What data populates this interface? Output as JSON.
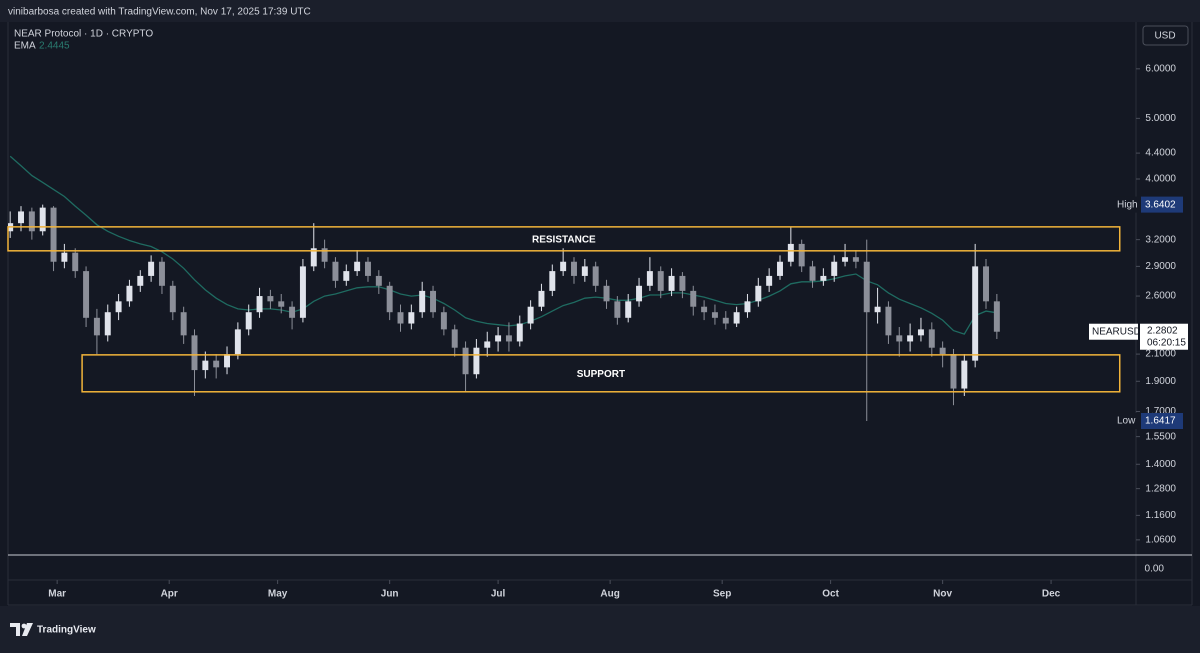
{
  "chart_data": {
    "type": "candlestick",
    "attribution": "vinibarbosa created with TradingView.com, Nov 17, 2025 17:39 UTC",
    "title": "NEAR Protocol · 1D · CRYPTO",
    "currency": "USD",
    "brand": "TradingView",
    "log_scale": true,
    "grid": false,
    "x": [
      -13,
      -10,
      -7,
      -4,
      -1,
      2,
      5,
      8,
      11,
      14,
      17,
      20,
      23,
      26,
      29,
      32,
      35,
      38,
      41,
      44,
      47,
      50,
      53,
      56,
      59,
      62,
      65,
      68,
      71,
      74,
      77,
      80,
      83,
      86,
      89,
      92,
      95,
      98,
      101,
      104,
      107,
      110,
      113,
      116,
      119,
      122,
      125,
      128,
      131,
      134,
      137,
      140,
      143,
      146,
      149,
      152,
      155,
      158,
      161,
      164,
      167,
      170,
      173,
      176,
      179,
      182,
      185,
      188,
      191,
      194,
      197,
      200,
      203,
      206,
      209,
      212,
      215,
      218,
      221,
      224,
      227,
      230,
      233,
      236,
      239,
      242,
      245,
      248,
      251,
      254,
      257,
      260
    ],
    "xlim": [
      -13.6,
      298.5
    ],
    "xticks": [
      {
        "value": 0,
        "label": "Mar"
      },
      {
        "value": 31,
        "label": "Apr"
      },
      {
        "value": 61,
        "label": "May"
      },
      {
        "value": 92,
        "label": "Jun"
      },
      {
        "value": 122,
        "label": "Jul"
      },
      {
        "value": 153,
        "label": "Aug"
      },
      {
        "value": 184,
        "label": "Sep"
      },
      {
        "value": 214,
        "label": "Oct"
      },
      {
        "value": 245,
        "label": "Nov"
      },
      {
        "value": 275,
        "label": "Dec"
      }
    ],
    "ylim": [
      1.01,
      7.05
    ],
    "yticks": [
      {
        "value": 6,
        "label": "6.0000"
      },
      {
        "value": 5,
        "label": "5.0000"
      },
      {
        "value": 4.4,
        "label": "4.4000"
      },
      {
        "value": 4,
        "label": "4.0000"
      },
      {
        "value": 3.2,
        "label": "3.2000"
      },
      {
        "value": 2.9,
        "label": "2.9000"
      },
      {
        "value": 2.6,
        "label": "2.6000"
      },
      {
        "value": 2.1,
        "label": "2.1000"
      },
      {
        "value": 1.9,
        "label": "1.9000"
      },
      {
        "value": 1.7,
        "label": "1.7000"
      },
      {
        "value": 1.55,
        "label": "1.5500"
      },
      {
        "value": 1.4,
        "label": "1.4000"
      },
      {
        "value": 1.28,
        "label": "1.2800"
      },
      {
        "value": 1.16,
        "label": "1.1600"
      },
      {
        "value": 1.06,
        "label": "1.0600"
      }
    ],
    "lower_pane_yticks": [
      {
        "value": 0,
        "label": "0.00"
      }
    ],
    "candles": {
      "name": "NEARUSD",
      "up_color": "#e0e3eb",
      "down_color": "#8c8f99",
      "ohlc": [
        [
          3.3,
          3.55,
          3.22,
          3.4
        ],
        [
          3.4,
          3.62,
          3.3,
          3.55
        ],
        [
          3.55,
          3.6,
          3.2,
          3.3
        ],
        [
          3.3,
          3.6402,
          3.25,
          3.6
        ],
        [
          3.6,
          3.62,
          2.85,
          2.95
        ],
        [
          2.95,
          3.15,
          2.88,
          3.05
        ],
        [
          3.05,
          3.1,
          2.78,
          2.85
        ],
        [
          2.85,
          2.9,
          2.32,
          2.4
        ],
        [
          2.4,
          2.48,
          2.1,
          2.25
        ],
        [
          2.25,
          2.52,
          2.2,
          2.45
        ],
        [
          2.45,
          2.62,
          2.38,
          2.55
        ],
        [
          2.55,
          2.76,
          2.5,
          2.7
        ],
        [
          2.7,
          2.86,
          2.64,
          2.8
        ],
        [
          2.8,
          3.02,
          2.74,
          2.95
        ],
        [
          2.95,
          3.0,
          2.62,
          2.7
        ],
        [
          2.7,
          2.75,
          2.38,
          2.45
        ],
        [
          2.45,
          2.5,
          2.18,
          2.25
        ],
        [
          2.25,
          2.3,
          1.8,
          1.98
        ],
        [
          1.98,
          2.12,
          1.92,
          2.05
        ],
        [
          2.05,
          2.1,
          1.92,
          2.0
        ],
        [
          2.0,
          2.16,
          1.95,
          2.1
        ],
        [
          2.1,
          2.36,
          2.06,
          2.3
        ],
        [
          2.3,
          2.52,
          2.25,
          2.45
        ],
        [
          2.45,
          2.68,
          2.4,
          2.6
        ],
        [
          2.6,
          2.66,
          2.48,
          2.55
        ],
        [
          2.55,
          2.62,
          2.44,
          2.5
        ],
        [
          2.5,
          2.55,
          2.3,
          2.4
        ],
        [
          2.4,
          2.98,
          2.36,
          2.9
        ],
        [
          2.9,
          3.4,
          2.85,
          3.1
        ],
        [
          3.1,
          3.2,
          2.88,
          2.95
        ],
        [
          2.95,
          3.0,
          2.68,
          2.75
        ],
        [
          2.75,
          2.92,
          2.7,
          2.85
        ],
        [
          2.85,
          3.08,
          2.8,
          2.95
        ],
        [
          2.95,
          3.0,
          2.74,
          2.8
        ],
        [
          2.8,
          2.86,
          2.62,
          2.7
        ],
        [
          2.7,
          2.74,
          2.38,
          2.45
        ],
        [
          2.45,
          2.52,
          2.28,
          2.35
        ],
        [
          2.35,
          2.52,
          2.3,
          2.45
        ],
        [
          2.45,
          2.74,
          2.4,
          2.65
        ],
        [
          2.65,
          2.7,
          2.4,
          2.45
        ],
        [
          2.45,
          2.5,
          2.25,
          2.3
        ],
        [
          2.3,
          2.34,
          2.08,
          2.15
        ],
        [
          2.15,
          2.2,
          1.83,
          1.95
        ],
        [
          1.95,
          2.22,
          1.92,
          2.15
        ],
        [
          2.15,
          2.28,
          2.08,
          2.2
        ],
        [
          2.2,
          2.32,
          2.12,
          2.25
        ],
        [
          2.25,
          2.36,
          2.12,
          2.2
        ],
        [
          2.2,
          2.42,
          2.16,
          2.35
        ],
        [
          2.35,
          2.56,
          2.3,
          2.5
        ],
        [
          2.5,
          2.72,
          2.46,
          2.65
        ],
        [
          2.65,
          2.92,
          2.6,
          2.85
        ],
        [
          2.85,
          3.1,
          2.8,
          2.95
        ],
        [
          2.95,
          3.0,
          2.72,
          2.8
        ],
        [
          2.8,
          2.98,
          2.74,
          2.9
        ],
        [
          2.9,
          2.95,
          2.64,
          2.7
        ],
        [
          2.7,
          2.76,
          2.48,
          2.55
        ],
        [
          2.55,
          2.6,
          2.34,
          2.4
        ],
        [
          2.4,
          2.62,
          2.36,
          2.55
        ],
        [
          2.55,
          2.78,
          2.5,
          2.7
        ],
        [
          2.7,
          3.0,
          2.65,
          2.85
        ],
        [
          2.85,
          2.9,
          2.58,
          2.65
        ],
        [
          2.65,
          2.88,
          2.6,
          2.8
        ],
        [
          2.8,
          2.84,
          2.58,
          2.65
        ],
        [
          2.65,
          2.7,
          2.42,
          2.5
        ],
        [
          2.5,
          2.56,
          2.38,
          2.45
        ],
        [
          2.45,
          2.52,
          2.34,
          2.4
        ],
        [
          2.4,
          2.46,
          2.3,
          2.35
        ],
        [
          2.35,
          2.5,
          2.32,
          2.45
        ],
        [
          2.45,
          2.62,
          2.4,
          2.55
        ],
        [
          2.55,
          2.78,
          2.5,
          2.7
        ],
        [
          2.7,
          2.88,
          2.64,
          2.8
        ],
        [
          2.8,
          3.02,
          2.76,
          2.95
        ],
        [
          2.95,
          3.35,
          2.9,
          3.15
        ],
        [
          3.15,
          3.2,
          2.84,
          2.9
        ],
        [
          2.9,
          2.96,
          2.68,
          2.75
        ],
        [
          2.75,
          2.88,
          2.7,
          2.8
        ],
        [
          2.8,
          3.02,
          2.74,
          2.95
        ],
        [
          2.95,
          3.15,
          2.9,
          3.0
        ],
        [
          3.0,
          3.08,
          2.88,
          2.95
        ],
        [
          2.95,
          3.2,
          1.6417,
          2.45
        ],
        [
          2.45,
          2.68,
          2.35,
          2.5
        ],
        [
          2.5,
          2.55,
          2.18,
          2.25
        ],
        [
          2.25,
          2.32,
          2.08,
          2.2
        ],
        [
          2.2,
          2.35,
          2.12,
          2.25
        ],
        [
          2.25,
          2.4,
          2.2,
          2.3
        ],
        [
          2.3,
          2.36,
          2.08,
          2.15
        ],
        [
          2.15,
          2.2,
          2.0,
          2.1
        ],
        [
          2.1,
          2.14,
          1.74,
          1.85
        ],
        [
          1.85,
          2.1,
          1.8,
          2.05
        ],
        [
          2.05,
          3.15,
          2.0,
          2.9
        ],
        [
          2.9,
          2.98,
          2.48,
          2.55
        ],
        [
          2.55,
          2.62,
          2.22,
          2.2802
        ]
      ]
    },
    "ema": {
      "name": "EMA",
      "color": "#1f6b61",
      "values": [
        4.35,
        4.2,
        4.05,
        3.95,
        3.85,
        3.75,
        3.62,
        3.5,
        3.38,
        3.3,
        3.24,
        3.19,
        3.15,
        3.12,
        3.06,
        2.98,
        2.88,
        2.76,
        2.66,
        2.58,
        2.52,
        2.48,
        2.47,
        2.48,
        2.48,
        2.47,
        2.45,
        2.48,
        2.55,
        2.6,
        2.62,
        2.65,
        2.68,
        2.69,
        2.69,
        2.66,
        2.62,
        2.6,
        2.61,
        2.58,
        2.53,
        2.47,
        2.4,
        2.37,
        2.35,
        2.34,
        2.33,
        2.34,
        2.37,
        2.41,
        2.46,
        2.51,
        2.54,
        2.58,
        2.59,
        2.58,
        2.56,
        2.56,
        2.58,
        2.61,
        2.61,
        2.63,
        2.63,
        2.61,
        2.59,
        2.56,
        2.53,
        2.52,
        2.53,
        2.56,
        2.6,
        2.65,
        2.72,
        2.74,
        2.74,
        2.75,
        2.77,
        2.8,
        2.82,
        2.75,
        2.71,
        2.63,
        2.57,
        2.53,
        2.49,
        2.44,
        2.38,
        2.29,
        2.26,
        2.42,
        2.46,
        2.4445
      ]
    },
    "zones": [
      {
        "label": "RESISTANCE",
        "color": "#f2b43a",
        "ylim": [
          3.071,
          3.354
        ],
        "xlim": [
          -13.6,
          294
        ]
      },
      {
        "label": "SUPPORT",
        "color": "#f2b43a",
        "ylim": [
          1.828,
          2.094
        ],
        "xlim": [
          6.9,
          294
        ]
      }
    ],
    "high_label": "High",
    "low_label": "Low",
    "countdown": "06:20:15"
  }
}
